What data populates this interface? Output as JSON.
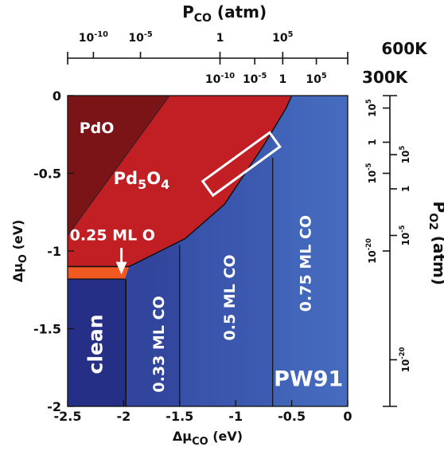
{
  "chart_data": {
    "type": "heatmap",
    "xlabel": "Δμ",
    "xlabel_sub": "CO",
    "xlabel_unit": "(eV)",
    "ylabel": "Δμ",
    "ylabel_sub": "O",
    "ylabel_unit": "(eV)",
    "xlim": [
      -2.5,
      0
    ],
    "ylim": [
      -2,
      0
    ],
    "x_ticks": [
      "-2.5",
      "-2",
      "-1.5",
      "-1",
      "-0.5",
      "0"
    ],
    "y_ticks": [
      "0",
      "-0.5",
      "-1",
      "-1.5",
      "-2"
    ],
    "regions": [
      {
        "label": "PdO",
        "color": "#7a1416"
      },
      {
        "label": "Pd5O4",
        "label_main": "Pd",
        "label_sub1": "5",
        "label_mid": "O",
        "label_sub2": "4",
        "color": "#c21f25"
      },
      {
        "label": "0.25 ML O",
        "color": "#f05a22"
      },
      {
        "label": "clean",
        "color": "#262f86"
      },
      {
        "label": "0.33 ML CO",
        "color": "#2f3f98"
      },
      {
        "label": "0.5 ML CO",
        "color": "#3550a8"
      },
      {
        "label": "0.75 ML CO",
        "color": "#3d63b8"
      }
    ],
    "boundaries": {
      "pdo_pd5o4": [
        [
          -2.5,
          -0.9
        ],
        [
          -1.59,
          0
        ]
      ],
      "pd5o4_co": [
        [
          -2.5,
          -1.1
        ],
        [
          -1.95,
          -1.1
        ],
        [
          -1.45,
          -0.92
        ],
        [
          -1.1,
          -0.7
        ],
        [
          -0.75,
          -0.32
        ],
        [
          -0.55,
          -0.08
        ],
        [
          -0.5,
          0
        ]
      ],
      "orange_band": [
        -1.18,
        -1.1
      ],
      "clean_right_x": -1.98,
      "co33_right_x": -1.5,
      "co50_right_x": -0.67
    },
    "annotation": {
      "text": "0.25 ML O"
    },
    "method_label": "PW91",
    "top_axis": {
      "title": "P",
      "title_sub": "CO",
      "title_unit": "(atm)",
      "scale_600K": {
        "label": "600K",
        "ticks": [
          "10-10",
          "10-5",
          "1",
          "105"
        ],
        "tick_exps": [
          "-10",
          "-5",
          "",
          "5"
        ],
        "tick_bases": [
          "10",
          "10",
          "1",
          "10"
        ],
        "tick_x": [
          -2.27,
          -1.85,
          -1.14,
          -0.58
        ]
      },
      "scale_300K": {
        "label": "300K",
        "ticks": [
          "10-10",
          "10-5",
          "1",
          "105"
        ],
        "tick_exps": [
          "-10",
          "-5",
          "",
          "5"
        ],
        "tick_bases": [
          "10",
          "10",
          "1",
          "10"
        ],
        "tick_x": [
          -1.14,
          -0.83,
          -0.58,
          -0.28
        ]
      }
    },
    "right_axis": {
      "title": "P",
      "title_sub": "O2",
      "title_unit": "(atm)",
      "outer_ticks": [
        "105",
        "1",
        "10-5",
        "10-20"
      ],
      "outer_bases": [
        "10",
        "1",
        "10",
        "10"
      ],
      "outer_exps": [
        "5",
        "",
        "-5",
        "-20"
      ],
      "outer_y": [
        -0.08,
        -0.3,
        -0.5,
        -1.0
      ],
      "inner_ticks": [
        "105",
        "1",
        "10-5",
        "10-20"
      ],
      "inner_bases": [
        "10",
        "1",
        "10",
        "10"
      ],
      "inner_exps": [
        "5",
        "",
        "-5",
        "-20"
      ],
      "inner_y": [
        -0.38,
        -0.6,
        -0.9,
        -1.7
      ]
    }
  }
}
